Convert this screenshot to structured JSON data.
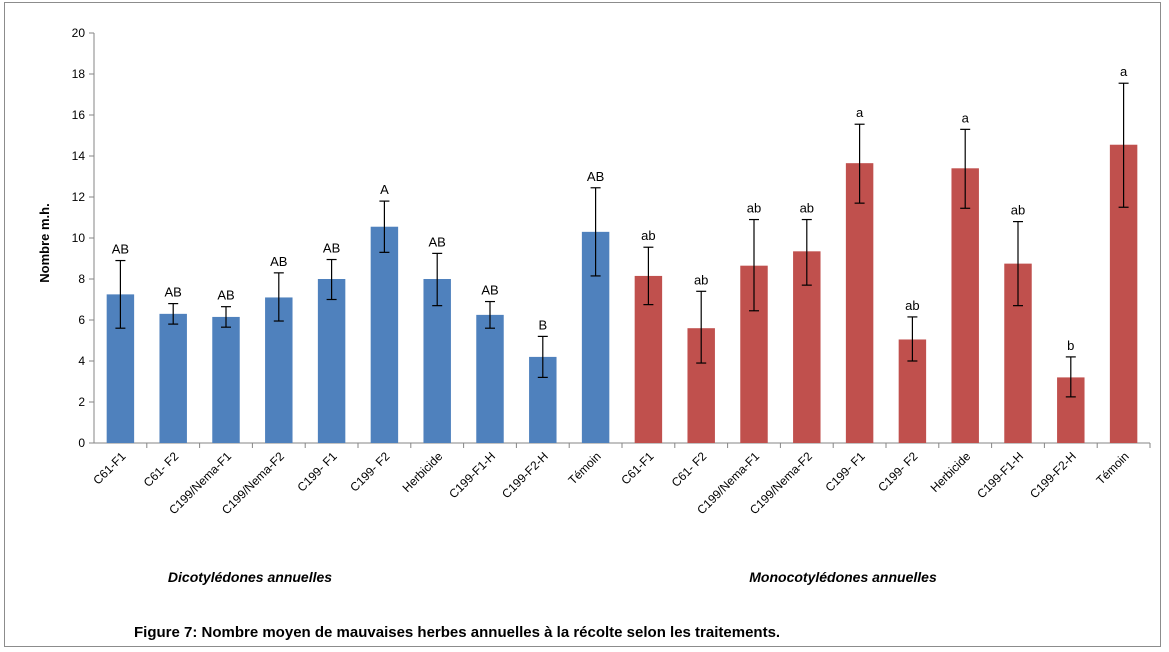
{
  "chart_data": {
    "type": "bar",
    "ylabel": "Nombre m.h.",
    "ylim": [
      0,
      20
    ],
    "yticks": [
      0,
      2,
      4,
      6,
      8,
      10,
      12,
      14,
      16,
      18,
      20
    ],
    "grid": false,
    "caption": "Figure 7: Nombre moyen de mauvaises herbes annuelles à la récolte selon les traitements.",
    "groups": [
      {
        "label": "Dicotylédones annuelles",
        "color": "#4f81bd",
        "categories": [
          "C61-F1",
          "C61- F2",
          "C199/Nema-F1",
          "C199/Nema-F2",
          "C199- F1",
          "C199- F2",
          "Herbicide",
          "C199-F1-H",
          "C199-F2-H",
          "Témoin"
        ],
        "values": [
          7.25,
          6.3,
          6.15,
          7.1,
          8.0,
          10.55,
          8.0,
          6.25,
          4.2,
          10.3
        ],
        "error_low": [
          5.6,
          5.8,
          5.65,
          5.95,
          7.0,
          9.3,
          6.7,
          5.6,
          3.2,
          8.15
        ],
        "error_high": [
          8.9,
          6.8,
          6.65,
          8.3,
          8.95,
          11.8,
          9.25,
          6.9,
          5.2,
          12.45
        ],
        "significance": [
          "AB",
          "AB",
          "AB",
          "AB",
          "AB",
          "A",
          "AB",
          "AB",
          "B",
          "AB"
        ]
      },
      {
        "label": "Monocotylédones annuelles",
        "color": "#c0504d",
        "categories": [
          "C61-F1",
          "C61- F2",
          "C199/Nema-F1",
          "C199/Nema-F2",
          "C199- F1",
          "C199- F2",
          "Herbicide",
          "C199-F1-H",
          "C199-F2-H",
          "Témoin"
        ],
        "values": [
          8.15,
          5.6,
          8.65,
          9.35,
          13.65,
          5.05,
          13.4,
          8.75,
          3.2,
          14.55
        ],
        "error_low": [
          6.75,
          3.9,
          6.45,
          7.7,
          11.7,
          4.0,
          11.45,
          6.7,
          2.25,
          11.5
        ],
        "error_high": [
          9.55,
          7.4,
          10.9,
          10.9,
          15.55,
          6.15,
          15.3,
          10.8,
          4.2,
          17.55
        ],
        "significance": [
          "ab",
          "ab",
          "ab",
          "ab",
          "a",
          "ab",
          "a",
          "ab",
          "b",
          "a"
        ]
      }
    ]
  }
}
